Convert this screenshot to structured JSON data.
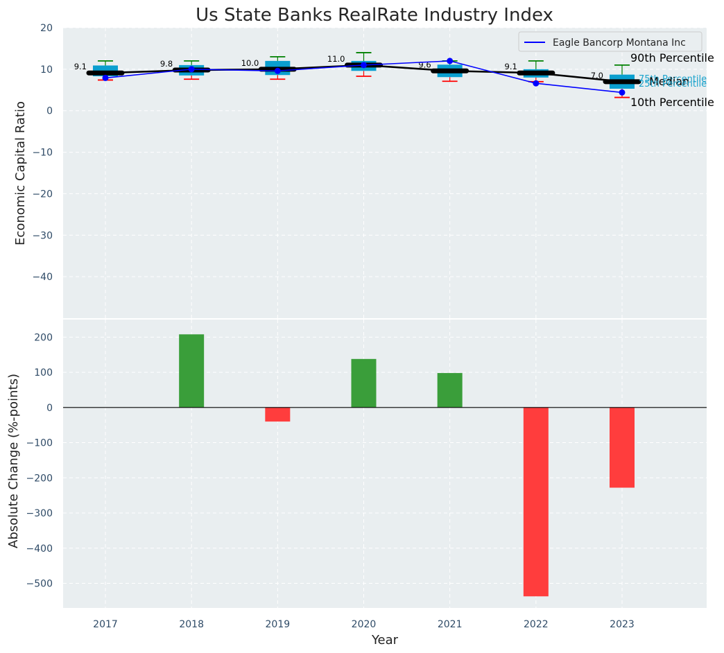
{
  "colors": {
    "panel_bg": "#e9eef0",
    "box": "#0a9fcf",
    "median": "#000000",
    "company": "#0000ff",
    "whisker_high": "#008000",
    "whisker_low": "#ff0000",
    "bar_pos": "#3a9e3a",
    "bar_neg": "#ff3d3d"
  },
  "chart_data": [
    {
      "type": "box",
      "title": "Us State Banks RealRate Industry Index",
      "ylabel": "Economic Capital Ratio",
      "categories": [
        "2017",
        "2018",
        "2019",
        "2020",
        "2021",
        "2022",
        "2023"
      ],
      "ylim": [
        -50,
        20
      ],
      "yticks": [
        20,
        10,
        0,
        -10,
        -20,
        -30,
        -40
      ],
      "ytick_labels": [
        "20",
        "10",
        "0",
        "−10",
        "−20",
        "−30",
        "−40"
      ],
      "p10": [
        7.4,
        7.6,
        7.6,
        8.3,
        7.1,
        7.0,
        3.2
      ],
      "p25": [
        8.3,
        8.5,
        8.6,
        9.6,
        8.1,
        8.0,
        5.3
      ],
      "median": [
        9.1,
        9.8,
        10.0,
        11.0,
        9.6,
        9.1,
        7.0
      ],
      "p75": [
        10.9,
        11.0,
        12.0,
        12.0,
        11.1,
        10.0,
        8.7
      ],
      "p90": [
        12.0,
        12.0,
        13.0,
        14.0,
        12.0,
        12.0,
        11.0
      ],
      "median_labels": [
        "9.1",
        "9.8",
        "10.0",
        "11.0",
        "9.6",
        "9.1",
        "7.0"
      ],
      "series": [
        {
          "name": "Eagle Bancorp Montana Inc",
          "values": [
            7.9,
            10.0,
            9.6,
            11.0,
            12.0,
            6.6,
            4.4
          ]
        }
      ],
      "legend": {
        "entries": [
          "Eagle Bancorp Montana Inc"
        ],
        "position": "top-right"
      },
      "annotations": {
        "p90": "90th Percentile",
        "p75": "75th Percentile",
        "median": "Median",
        "p25": "25th Percentile",
        "p10": "10th Percentile"
      },
      "grid": true
    },
    {
      "type": "bar",
      "ylabel": "Absolute Change (%-points)",
      "xlabel": "Year",
      "categories": [
        "2017",
        "2018",
        "2019",
        "2020",
        "2021",
        "2022",
        "2023"
      ],
      "values": [
        0,
        208,
        -40,
        138,
        98,
        -537,
        -228
      ],
      "ylim": [
        -570,
        250
      ],
      "yticks": [
        200,
        100,
        0,
        -100,
        -200,
        -300,
        -400,
        -500
      ],
      "ytick_labels": [
        "200",
        "100",
        "0",
        "−100",
        "−200",
        "−300",
        "−400",
        "−500"
      ],
      "grid": true
    }
  ]
}
